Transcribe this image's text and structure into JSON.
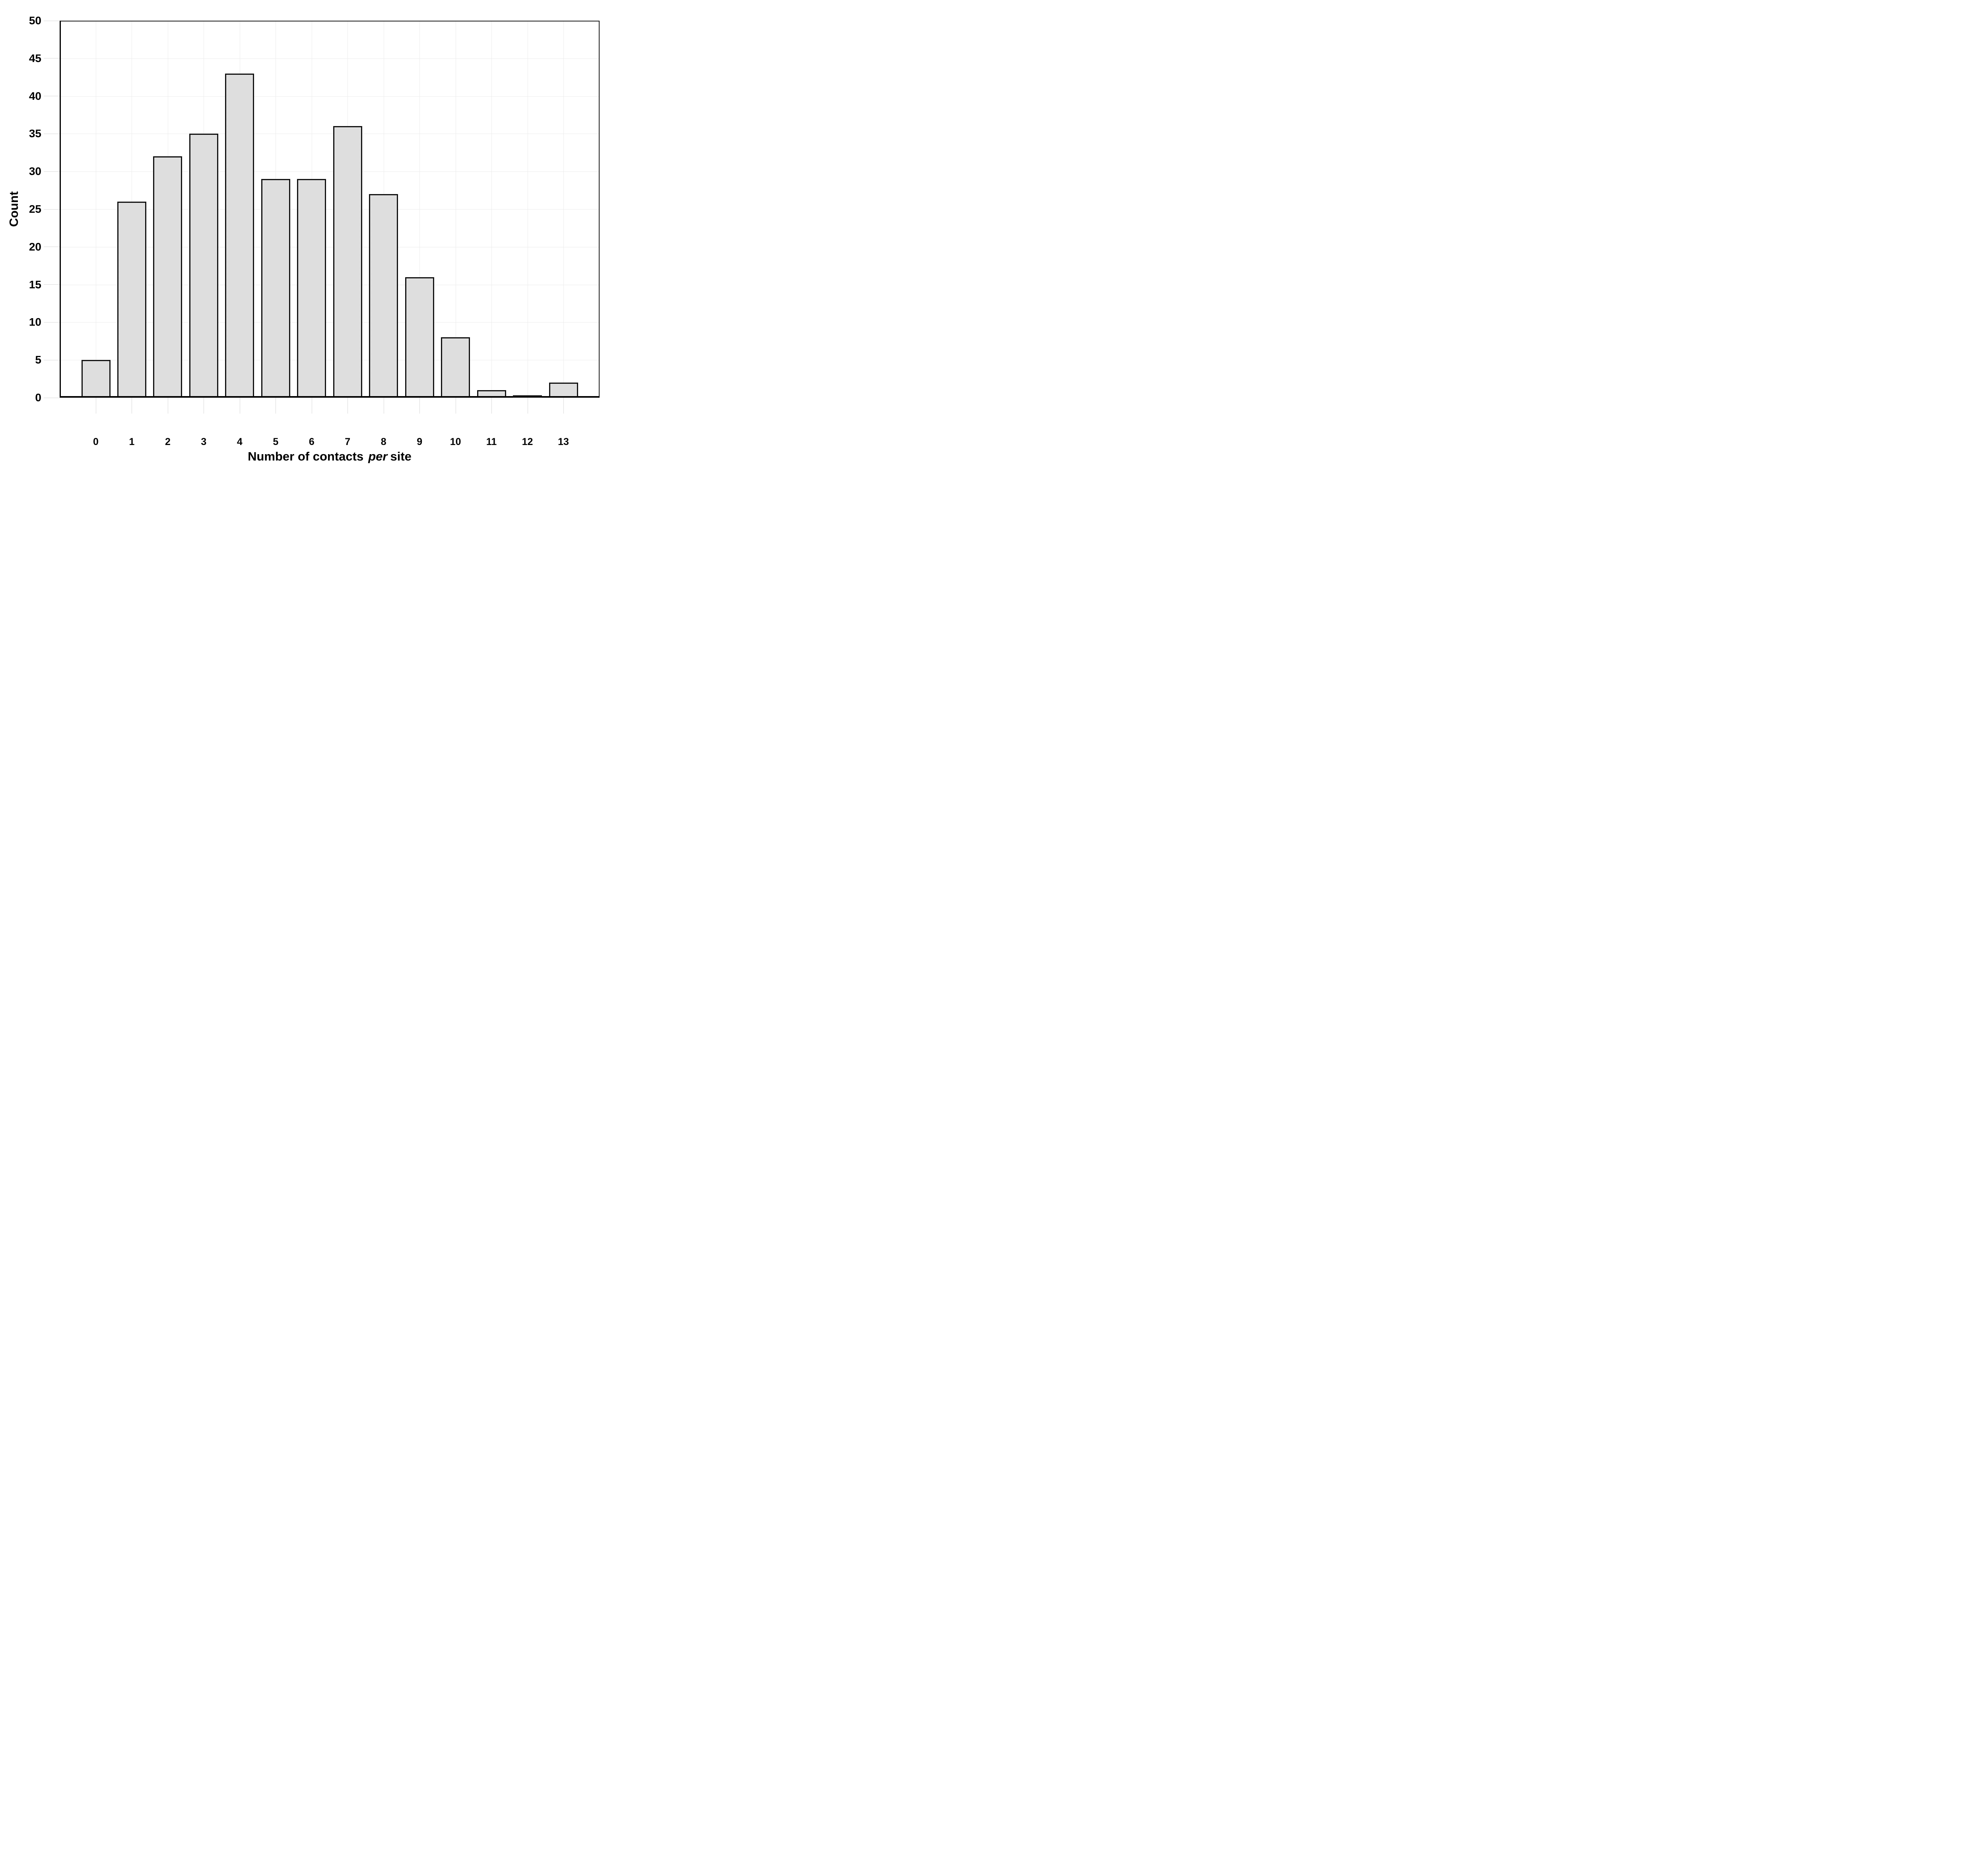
{
  "figure": {
    "background": "#ffffff",
    "bar_fill": "#e7e7e7",
    "bar_stipple": "#6e6e6e",
    "bar_border": "#111111",
    "grid_color": "#ececec",
    "tick_color": "#d8d8d8",
    "axis_color": "#000000",
    "text_color": "#000000"
  },
  "chart_data": {
    "type": "bar",
    "title": "",
    "categories": [
      "0",
      "1",
      "2",
      "3",
      "4",
      "5",
      "6",
      "7",
      "8",
      "9",
      "10",
      "11",
      "12",
      "13"
    ],
    "values": [
      5,
      26,
      32,
      35,
      43,
      29,
      29,
      36,
      27,
      16,
      8,
      1,
      0,
      2
    ],
    "xlabel": "Number of contacts per site",
    "xlabel_parts": {
      "prefix": "Number of contacts",
      "italic": "per",
      "suffix": "site"
    },
    "ylabel": "Count",
    "ylim": [
      0,
      50
    ],
    "yticks": [
      0,
      5,
      10,
      15,
      20,
      25,
      30,
      35,
      40,
      45,
      50
    ],
    "grid": true,
    "legend_position": "none",
    "frame": "box"
  }
}
